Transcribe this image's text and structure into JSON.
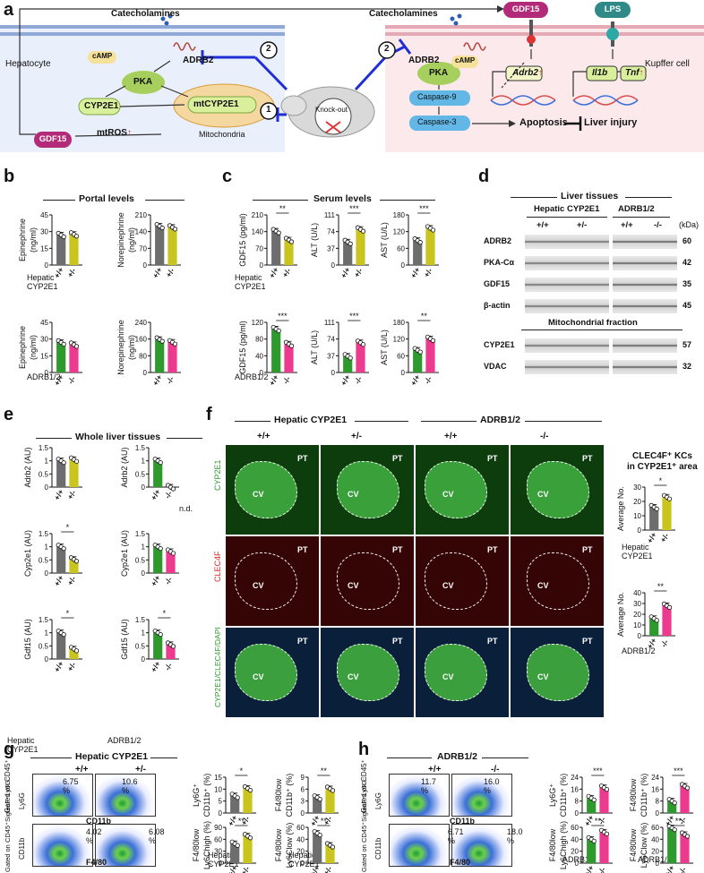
{
  "panels": [
    "a",
    "b",
    "c",
    "d",
    "e",
    "f",
    "g",
    "h"
  ],
  "a": {
    "hepatocyte_label": "Hepatocyte",
    "kupffer_label": "Kupffer cell",
    "catecholamines_left": "Catecholamines",
    "catecholamines_right": "Catecholamines",
    "adrb2_left": "ADRB2",
    "adrb2_right": "ADRB2",
    "camp_left": "cAMP",
    "camp_right": "cAMP",
    "pka_left": "PKA",
    "pka_right": "PKA",
    "cyp2e1": "CYP2E1",
    "mtcyp2e1": "mtCYP2E1",
    "mtros": "mtROS",
    "up_arrow": "↑",
    "mitochondria": "Mitochondria",
    "gdf15_left": "GDF15",
    "gdf15_top": "GDF15",
    "lps": "LPS",
    "knockout": "Knock-out",
    "casp9": "Caspase-9",
    "casp3": "Caspase-3",
    "adrb2_gene": "Adrb2",
    "il1b": "Il1b",
    "tnf": "Tnf",
    "apoptosis": "Apoptosis",
    "liver_injury": "Liver injury",
    "circle1": "1",
    "circle2a": "2",
    "circle2b": "2"
  },
  "b": {
    "title": "Portal levels",
    "rowlabel_top_1": "Hepatic",
    "rowlabel_top_2": "CYP2E1",
    "rowlabel_bot": "ADRB1/2"
  },
  "c": {
    "title": "Serum levels",
    "rowlabel_top_1": "Hepatic",
    "rowlabel_top_2": "CYP2E1",
    "rowlabel_bot": "ADRB1/2"
  },
  "d": {
    "title": "Liver tissues",
    "group1": "Hepatic  CYP2E1",
    "group2": "ADRB1/2",
    "g1_wt": "+/+",
    "g1_ko": "+/-",
    "g2_wt": "+/+",
    "g2_ko": "-/-",
    "kda": "(kDa)",
    "bands_top": [
      {
        "name": "ADRB2",
        "kda": "60"
      },
      {
        "name": "PKA-Cα",
        "kda": "42"
      },
      {
        "name": "GDF15",
        "kda": "35"
      },
      {
        "name": "β-actin",
        "kda": "45"
      }
    ],
    "mito_title": "Mitochondrial fraction",
    "bands_bot": [
      {
        "name": "CYP2E1",
        "kda": "57"
      },
      {
        "name": "VDAC",
        "kda": "32"
      }
    ]
  },
  "e": {
    "title": "Whole liver tissues",
    "na": "n.d.",
    "rowlabel_left_1": "Hepatic",
    "rowlabel_left_2": "CYP2E1",
    "rowlabel_right": "ADRB1/2"
  },
  "f": {
    "group1": "Hepatic  CYP2E1",
    "group2": "ADRB1/2",
    "cols": [
      "+/+",
      "+/-",
      "+/+",
      "-/-"
    ],
    "row_labels": [
      "CYP2E1",
      "CLEC4F",
      "CYP2E1/CLEC4F/DAPI"
    ],
    "cv": "CV",
    "pt": "PT",
    "side_title_1": "CLEC4F⁺ KCs",
    "side_title_2": "in CYP2E1⁺ area",
    "rowlabel_top_1": "Hepatic",
    "rowlabel_top_2": "CYP2E1",
    "rowlabel_bot": "ADRB1/2"
  },
  "g": {
    "title": "Hepatic CYP2E1",
    "wt": "+/+",
    "ko": "+/-",
    "gate1_1": "Gated on",
    "gate1_2": "CD45⁺",
    "gate2_1": "Gated on",
    "gate2_2": "CD45⁺SiglecF⁻Ly6G⁻",
    "y1": "Ly6G",
    "x1": "CD11b",
    "y2": "CD11b",
    "x2": "F4/80",
    "p1_wt": "6.75",
    "p1_ko": "10.6",
    "p2_wt": "4.02",
    "p2_ko": "6.08",
    "pct": "%",
    "rowlabel_1": "Hepatic",
    "rowlabel_2": "CYP2E1"
  },
  "h": {
    "title": "ADRB1/2",
    "wt": "+/+",
    "ko": "-/-",
    "gate1_1": "Gated on",
    "gate1_2": "CD45⁺",
    "gate2_1": "Gated on",
    "gate2_2": "CD45⁺SiglecF⁻Ly6G⁻",
    "y1": "Ly6G",
    "x1": "CD11b",
    "y2": "CD11b",
    "x2": "F4/80",
    "p1_wt": "11.7",
    "p1_ko": "16.0",
    "p2_wt": "6.71",
    "p2_ko": "18.0",
    "pct": "%",
    "rowlabel": "ADRB1/2"
  },
  "colors": {
    "grey": "#6d6d6d",
    "olive": "#c9c51e",
    "green": "#2e9a2e",
    "pink": "#ec3a8e",
    "pka": "#a6cf5e",
    "casp": "#62b7e6",
    "gdf15": "#b22a78",
    "inhibit": "#1f2ed6"
  },
  "chart_data": [
    {
      "id": "b1",
      "type": "bar",
      "ylabel": "Epinephrine\n(ng/ml)",
      "yticks": [
        0,
        15,
        30,
        45
      ],
      "ylim": [
        0,
        45
      ],
      "categories": [
        "+/+",
        "+/-"
      ],
      "values": [
        27,
        27.5
      ],
      "sig": ""
    },
    {
      "id": "b2",
      "type": "bar",
      "ylabel": "Norepinephrine\n(ng/ml)",
      "yticks": [
        0,
        70,
        140,
        210
      ],
      "ylim": [
        0,
        210
      ],
      "categories": [
        "+/+",
        "+/-"
      ],
      "values": [
        163,
        158
      ],
      "sig": ""
    },
    {
      "id": "b3",
      "type": "bar",
      "ylabel": "Epinephrine\n(ng/ml)",
      "yticks": [
        0,
        15,
        30,
        45
      ],
      "ylim": [
        0,
        45
      ],
      "categories": [
        "+/+",
        "-/-"
      ],
      "values": [
        27,
        25
      ],
      "sig": ""
    },
    {
      "id": "b4",
      "type": "bar",
      "ylabel": "Norepinephrine\n(ng/ml)",
      "yticks": [
        0,
        80,
        160,
        240
      ],
      "ylim": [
        0,
        240
      ],
      "categories": [
        "+/+",
        "-/-"
      ],
      "values": [
        158,
        145
      ],
      "sig": ""
    },
    {
      "id": "c1",
      "type": "bar",
      "ylabel": "GDF15 (pg/ml)",
      "yticks": [
        0,
        70,
        140,
        210
      ],
      "ylim": [
        0,
        210
      ],
      "categories": [
        "+/+",
        "+/-"
      ],
      "values": [
        142,
        105
      ],
      "sig": "**"
    },
    {
      "id": "c2",
      "type": "bar",
      "ylabel": "ALT (U/L)",
      "yticks": [
        0,
        37,
        74,
        111
      ],
      "ylim": [
        0,
        111
      ],
      "categories": [
        "+/+",
        "+/-"
      ],
      "values": [
        51,
        79
      ],
      "sig": "***"
    },
    {
      "id": "c3",
      "type": "bar",
      "ylabel": "AST (U/L)",
      "yticks": [
        0,
        60,
        120,
        180
      ],
      "ylim": [
        0,
        180
      ],
      "categories": [
        "+/+",
        "+/-"
      ],
      "values": [
        88,
        132
      ],
      "sig": "***"
    },
    {
      "id": "c4",
      "type": "bar",
      "ylabel": "GDF15 (pg/ml)",
      "yticks": [
        0,
        40,
        80,
        120
      ],
      "ylim": [
        0,
        120
      ],
      "categories": [
        "+/+",
        "-/-"
      ],
      "values": [
        104,
        68
      ],
      "sig": "***"
    },
    {
      "id": "c5",
      "type": "bar",
      "ylabel": "ALT (U/L)",
      "yticks": [
        0,
        37,
        74,
        111
      ],
      "ylim": [
        0,
        111
      ],
      "categories": [
        "+/+",
        "-/-"
      ],
      "values": [
        36,
        66
      ],
      "sig": "***"
    },
    {
      "id": "c6",
      "type": "bar",
      "ylabel": "AST (U/L)",
      "yticks": [
        0,
        60,
        120,
        180
      ],
      "ylim": [
        0,
        180
      ],
      "categories": [
        "+/+",
        "-/-"
      ],
      "values": [
        80,
        121
      ],
      "sig": "**"
    },
    {
      "id": "e1",
      "type": "bar",
      "ylabel": "Adrb2 (AU)",
      "yticks": [
        0,
        0.5,
        1.0,
        1.5
      ],
      "ylim": [
        0,
        1.5
      ],
      "categories": [
        "+/+",
        "+/-"
      ],
      "values": [
        1.0,
        1.05
      ],
      "sig": ""
    },
    {
      "id": "e2",
      "type": "bar",
      "ylabel": "Adrb2 (AU)",
      "yticks": [
        0,
        0.5,
        1.0,
        1.5
      ],
      "ylim": [
        0,
        1.5
      ],
      "categories": [
        "+/+",
        "-/-"
      ],
      "values": [
        1.0,
        0.0
      ],
      "sig": ""
    },
    {
      "id": "e3",
      "type": "bar",
      "ylabel": "Cyp2e1 (AU)",
      "yticks": [
        0,
        0.5,
        1.0,
        1.5
      ],
      "ylim": [
        0,
        1.5
      ],
      "categories": [
        "+/+",
        "+/-"
      ],
      "values": [
        1.0,
        0.52
      ],
      "sig": "*"
    },
    {
      "id": "e4",
      "type": "bar",
      "ylabel": "Cyp2e1 (AU)",
      "yticks": [
        0,
        0.5,
        1.0,
        1.5
      ],
      "ylim": [
        0,
        1.5
      ],
      "categories": [
        "+/+",
        "-/-"
      ],
      "values": [
        1.0,
        0.82
      ],
      "sig": ""
    },
    {
      "id": "e5",
      "type": "bar",
      "ylabel": "Gdf15 (AU)",
      "yticks": [
        0,
        0.5,
        1.0,
        1.5
      ],
      "ylim": [
        0,
        1.5
      ],
      "categories": [
        "+/+",
        "+/-"
      ],
      "values": [
        1.0,
        0.38
      ],
      "sig": "*"
    },
    {
      "id": "e6",
      "type": "bar",
      "ylabel": "Gdf15 (AU)",
      "yticks": [
        0,
        0.5,
        1.0,
        1.5
      ],
      "ylim": [
        0,
        1.5
      ],
      "categories": [
        "+/+",
        "-/-"
      ],
      "values": [
        1.0,
        0.55
      ],
      "sig": "*"
    },
    {
      "id": "f1",
      "type": "bar",
      "ylabel": "Average No.",
      "yticks": [
        0,
        10,
        20,
        30
      ],
      "ylim": [
        0,
        30
      ],
      "categories": [
        "+/+",
        "+/-"
      ],
      "values": [
        16,
        23
      ],
      "sig": "*"
    },
    {
      "id": "f2",
      "type": "bar",
      "ylabel": "Average No.",
      "yticks": [
        0,
        10,
        20,
        30,
        40
      ],
      "ylim": [
        0,
        40
      ],
      "categories": [
        "+/+",
        "-/-"
      ],
      "values": [
        16,
        28
      ],
      "sig": "**"
    },
    {
      "id": "g1",
      "type": "bar",
      "ylabel": "Ly6G⁺\nCD11b⁺ (%)",
      "yticks": [
        0,
        5,
        10,
        15
      ],
      "ylim": [
        0,
        15
      ],
      "categories": [
        "+/+",
        "+/-"
      ],
      "values": [
        7.2,
        10.3
      ],
      "sig": "*"
    },
    {
      "id": "g2",
      "type": "bar",
      "ylabel": "F4/80low\nCD11b⁺ (%)",
      "yticks": [
        0,
        3,
        6,
        9
      ],
      "ylim": [
        0,
        9
      ],
      "categories": [
        "+/+",
        "+/-"
      ],
      "values": [
        3.9,
        6.1
      ],
      "sig": "**"
    },
    {
      "id": "g3",
      "type": "bar",
      "ylabel": "F4/80low\nLy6Chigh (%)",
      "yticks": [
        0,
        30,
        60,
        90
      ],
      "ylim": [
        0,
        90
      ],
      "categories": [
        "+/+",
        "+/-"
      ],
      "values": [
        49,
        68
      ],
      "sig": "**"
    },
    {
      "id": "g4",
      "type": "bar",
      "ylabel": "F4/80low\nLy6Clow (%)",
      "yticks": [
        0,
        20,
        40,
        60
      ],
      "ylim": [
        0,
        60
      ],
      "categories": [
        "+/+",
        "+/-"
      ],
      "values": [
        50,
        30
      ],
      "sig": "**"
    },
    {
      "id": "h1",
      "type": "bar",
      "ylabel": "Ly6G⁺\nCD11b⁺ (%)",
      "yticks": [
        0,
        8,
        16,
        24
      ],
      "ylim": [
        0,
        24
      ],
      "categories": [
        "+/+",
        "-/-"
      ],
      "values": [
        10,
        17
      ],
      "sig": "***"
    },
    {
      "id": "h2",
      "type": "bar",
      "ylabel": "F4/80low\nCD11b⁺ (%)",
      "yticks": [
        0,
        8,
        16,
        24
      ],
      "ylim": [
        0,
        24
      ],
      "categories": [
        "+/+",
        "-/-"
      ],
      "values": [
        8,
        18
      ],
      "sig": "***"
    },
    {
      "id": "h3",
      "type": "bar",
      "ylabel": "F4/80low\nLy6Chigh (%)",
      "yticks": [
        0,
        20,
        40,
        60
      ],
      "ylim": [
        0,
        60
      ],
      "categories": [
        "+/+",
        "-/-"
      ],
      "values": [
        40,
        52
      ],
      "sig": "**"
    },
    {
      "id": "h4",
      "type": "bar",
      "ylabel": "F4/80low\nLy6Clow (%)",
      "yticks": [
        0,
        20,
        40,
        60
      ],
      "ylim": [
        0,
        60
      ],
      "categories": [
        "+/+",
        "-/-"
      ],
      "values": [
        59,
        48
      ],
      "sig": "**"
    }
  ]
}
